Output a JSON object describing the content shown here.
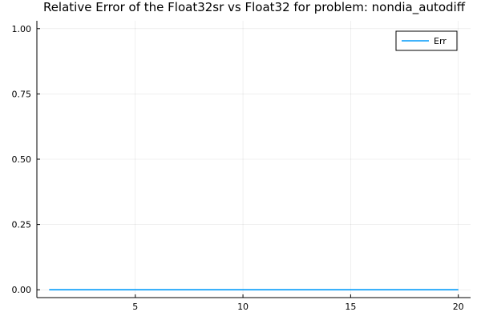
{
  "chart_data": {
    "type": "line",
    "title": "Relative Error of the Float32sr vs Float32 for problem: nondia_autodiff",
    "xlabel": "",
    "ylabel": "",
    "xlim": [
      0.43,
      20.57
    ],
    "ylim": [
      -0.03,
      1.03
    ],
    "x_ticks": [
      5,
      10,
      15,
      20
    ],
    "x_tick_labels": [
      "5",
      "10",
      "15",
      "20"
    ],
    "y_ticks": [
      0,
      0.25,
      0.5,
      0.75,
      1
    ],
    "y_tick_labels": [
      "0.00",
      "0.25",
      "0.50",
      "0.75",
      "1.00"
    ],
    "grid": true,
    "legend_position": "top-right",
    "series": [
      {
        "name": "Err",
        "color": "#009AFA",
        "x": [
          1,
          2,
          3,
          4,
          5,
          6,
          7,
          8,
          9,
          10,
          11,
          12,
          13,
          14,
          15,
          16,
          17,
          18,
          19,
          20
        ],
        "y": [
          0,
          0,
          0,
          0,
          0,
          0,
          0,
          0,
          0,
          0,
          0,
          0,
          0,
          0,
          0,
          0,
          0,
          0,
          0,
          0
        ]
      }
    ]
  }
}
